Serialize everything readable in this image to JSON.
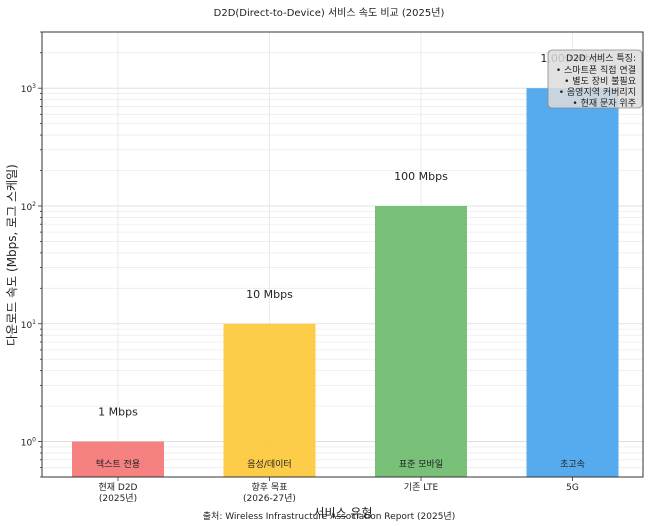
{
  "chart_data": {
    "type": "bar",
    "title": "D2D(Direct-to-Device) 서비스 속도 비교 (2025년)",
    "xlabel": "서비스 유형",
    "ylabel": "다운로드 속도 (Mbps, 로그 스케일)",
    "yscale": "log",
    "ylim": [
      0.5,
      3000
    ],
    "yticks": [
      {
        "value": 1,
        "base": "10",
        "exp": "0"
      },
      {
        "value": 10,
        "base": "10",
        "exp": "1"
      },
      {
        "value": 100,
        "base": "10",
        "exp": "2"
      },
      {
        "value": 1000,
        "base": "10",
        "exp": "3"
      }
    ],
    "grid": true,
    "categories": [
      [
        "현재 D2D",
        "(2025년)"
      ],
      [
        "향후 목표",
        "(2026-27년)"
      ],
      [
        "기존 LTE"
      ],
      [
        "5G"
      ]
    ],
    "values": [
      1,
      10,
      100,
      1000
    ],
    "value_labels": [
      "1 Mbps",
      "10 Mbps",
      "100 Mbps",
      "1,000 Mbps"
    ],
    "bar_labels": [
      "텍스트 전용",
      "음성/데이터",
      "표준 모바일",
      "초고속"
    ],
    "colors": [
      "#f47a7a",
      "#fdc93f",
      "#72bd72",
      "#4da6ee"
    ],
    "legend_box": {
      "title": "D2D 서비스 특징:",
      "items": [
        "• 스마트폰 직접 연결",
        "• 별도 장비 불필요",
        "• 음영지역 커버리지",
        "• 현재 문자 위주"
      ],
      "placement": "top-right"
    },
    "source": "출처: Wireless Infrastructure Association Report (2025년)"
  }
}
